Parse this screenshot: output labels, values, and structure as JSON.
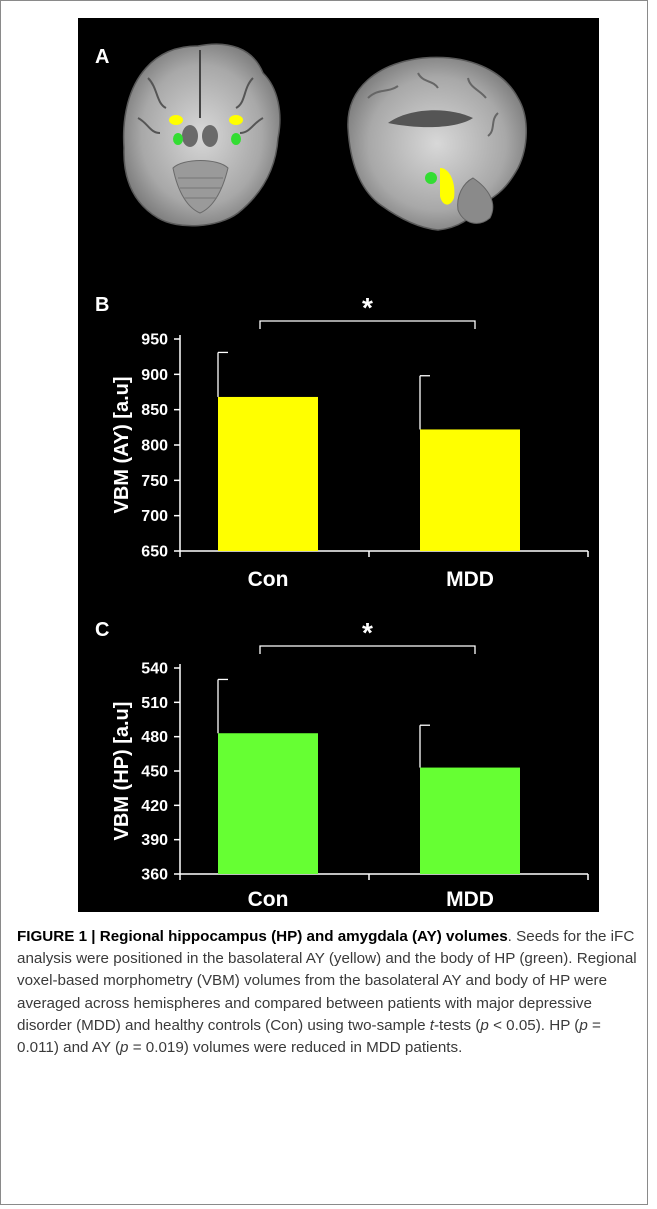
{
  "panels": {
    "a": {
      "label": "A"
    },
    "b": {
      "label": "B"
    },
    "c": {
      "label": "C"
    }
  },
  "colors": {
    "panel_bg": "#000000",
    "ay_yellow": "#ffff00",
    "hp_green": "#66ff33",
    "foreground": "#ffffff"
  },
  "chart_data": [
    {
      "type": "bar",
      "panel": "B",
      "title": "",
      "xlabel": "",
      "ylabel": "VBM (AY)  [a.u]",
      "categories": [
        "Con",
        "MDD"
      ],
      "values": [
        868,
        822
      ],
      "error_plus": [
        63,
        76
      ],
      "ylim": [
        650,
        950
      ],
      "yticks": [
        650,
        700,
        750,
        800,
        850,
        900,
        950
      ],
      "significance": "*",
      "bar_color": "#ffff00",
      "grid": false,
      "legend": "none"
    },
    {
      "type": "bar",
      "panel": "C",
      "title": "",
      "xlabel": "",
      "ylabel": "VBM (HP)  [a.u]",
      "categories": [
        "Con",
        "MDD"
      ],
      "values": [
        483,
        453
      ],
      "error_plus": [
        47,
        37
      ],
      "ylim": [
        360,
        540
      ],
      "yticks": [
        360,
        390,
        420,
        450,
        480,
        510,
        540
      ],
      "significance": "*",
      "bar_color": "#66ff33",
      "grid": false,
      "legend": "none"
    }
  ],
  "caption": {
    "figure_label": "FIGURE 1",
    "separator": "|",
    "title": "Regional hippocampus (HP) and amygdala (AY) volumes",
    "title_end": ".",
    "body_1": "Seeds for the iFC analysis were positioned in the basolateral AY (yellow) and the body of HP (green). Regional voxel-based morphometry (VBM) volumes from the basolateral AY and body of HP were averaged across hemispheres and compared between patients with major depressive disorder (MDD) and healthy controls (Con) using two-sample ",
    "t_italic": "t",
    "body_2": "-tests (",
    "p1": "p",
    "body_3": " < 0.05). HP (",
    "p2": "p",
    "body_4": " = 0.011) and AY (",
    "p3": "p",
    "body_5": " = 0.019) volumes were reduced in MDD patients."
  }
}
